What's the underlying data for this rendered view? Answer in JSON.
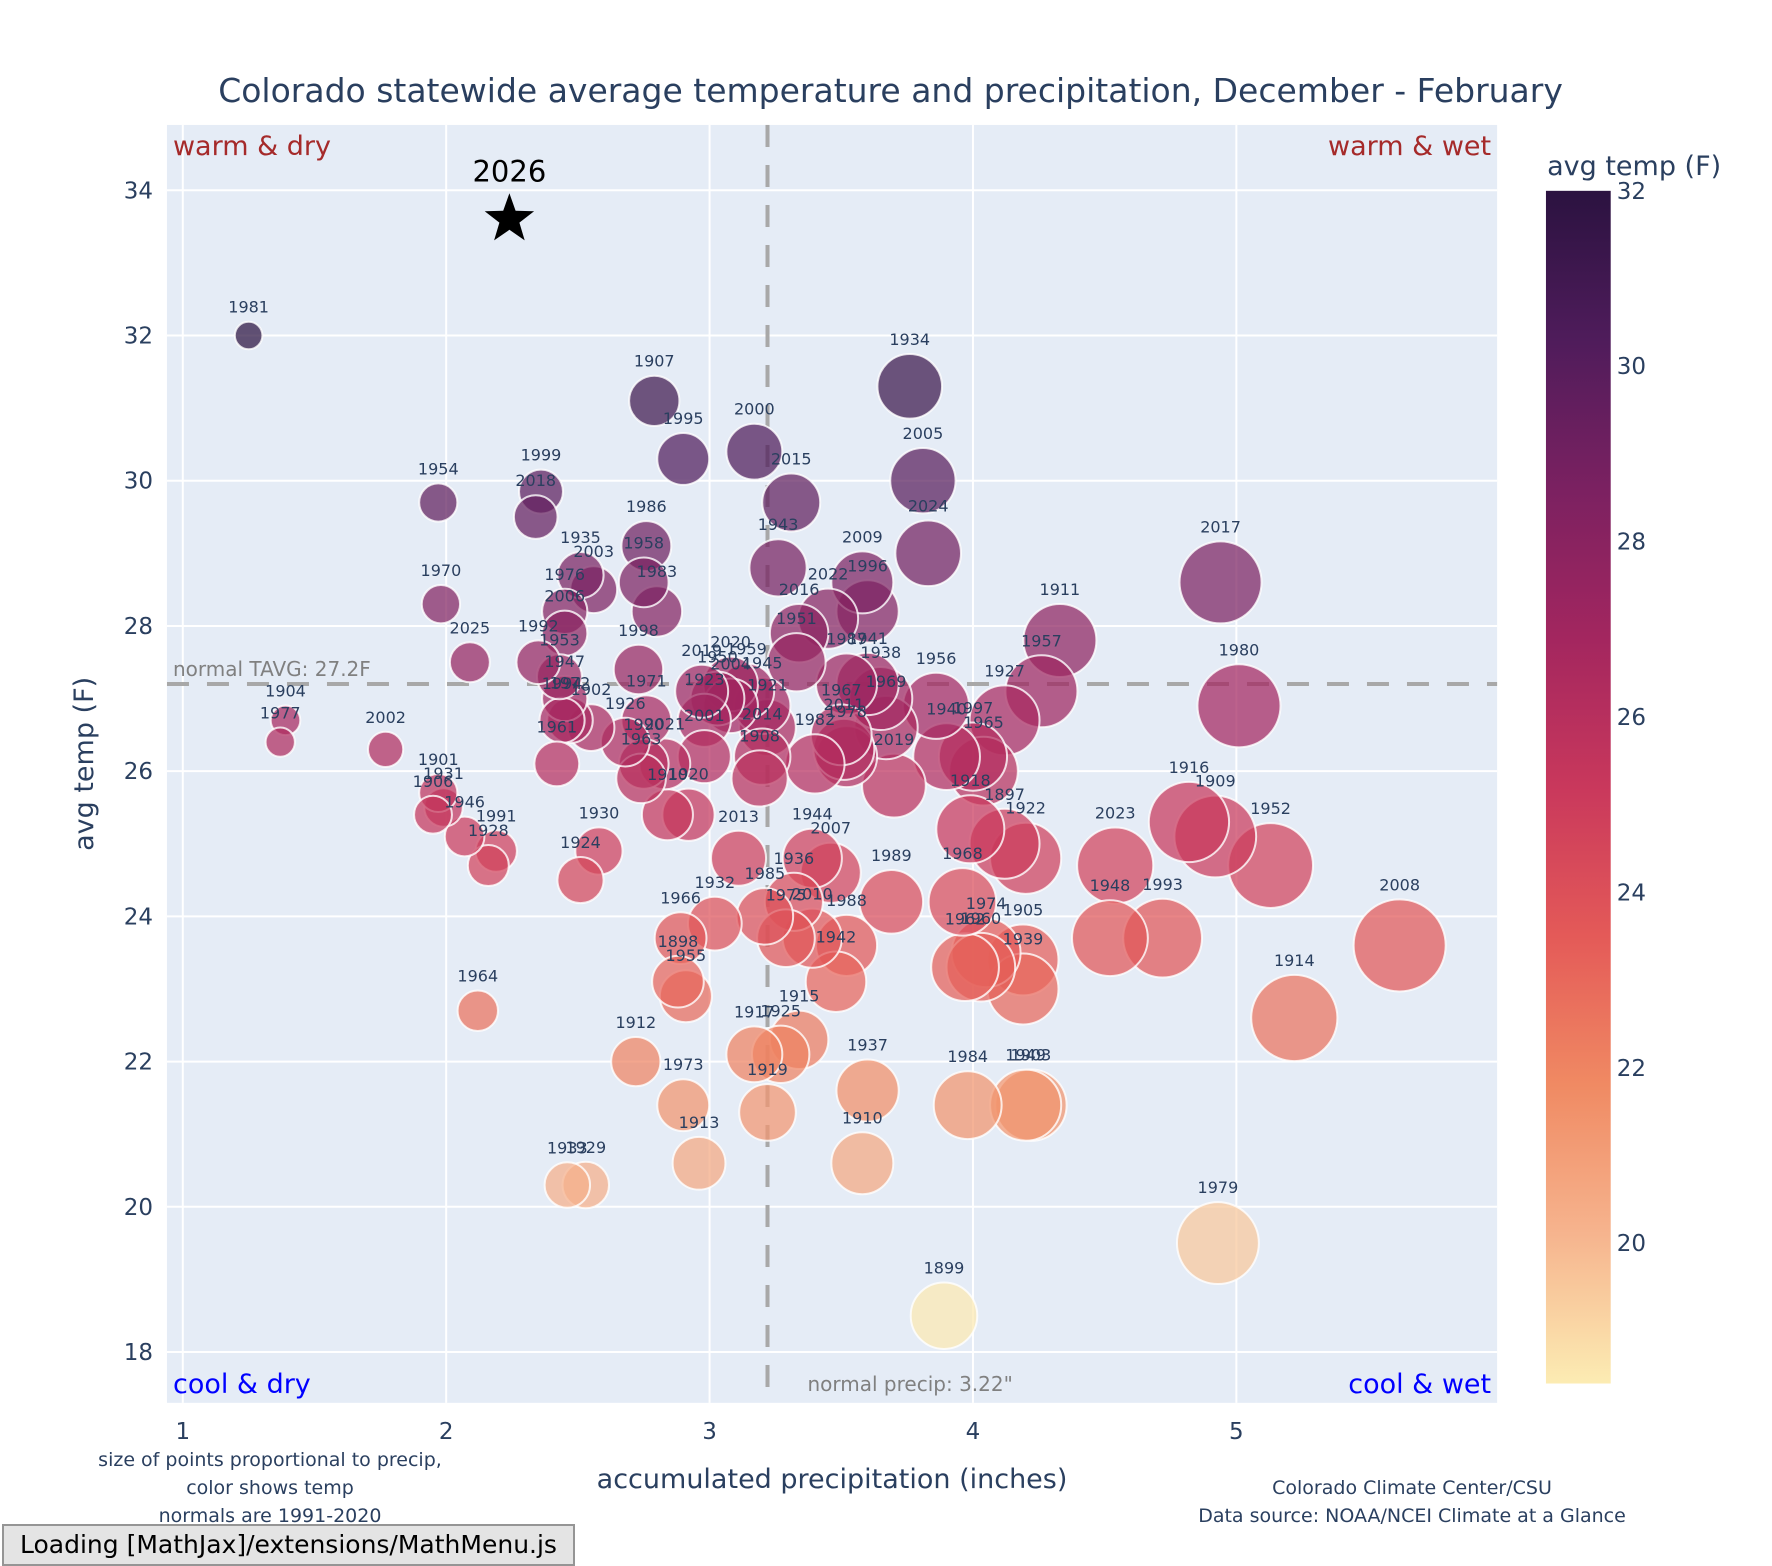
{
  "status_bar": {
    "text": "Loading [MathJax]/extensions/MathMenu.js"
  },
  "chart_data": {
    "type": "scatter",
    "title": "Colorado statewide average temperature and precipitation, December - February",
    "xlabel": "accumulated precipitation (inches)",
    "ylabel": "avg temp (F)",
    "xlim": [
      0.94,
      5.99
    ],
    "ylim": [
      17.3,
      34.9
    ],
    "x_ticks": [
      1,
      2,
      3,
      4,
      5
    ],
    "y_ticks": [
      18,
      20,
      22,
      24,
      26,
      28,
      30,
      32,
      34
    ],
    "grid": true,
    "size_encoding": "precip",
    "color_encoding": "avg temp",
    "colorbar": {
      "title": "avg temp (F)",
      "range": [
        18.4,
        32.0
      ],
      "ticks": [
        20,
        22,
        24,
        26,
        28,
        30,
        32
      ],
      "colorscale": [
        "#fcecb3",
        "#f6b48e",
        "#f08a63",
        "#e45a58",
        "#c9385c",
        "#a3265f",
        "#7b2161",
        "#4f1c5b",
        "#2b1240"
      ]
    },
    "reference_lines": {
      "normal_temp": {
        "value": 27.2,
        "label": "normal TAVG: 27.2F"
      },
      "normal_precip": {
        "value": 3.22,
        "label": "normal precip: 3.22\""
      }
    },
    "quadrant_labels": {
      "top_left": "warm & dry",
      "top_right": "warm & wet",
      "bottom_left": "cool & dry",
      "bottom_right": "cool & wet"
    },
    "highlight": {
      "label": "2026",
      "x": 2.24,
      "y": 33.6,
      "marker": "star"
    },
    "notes_left": [
      "size of points proportional to precip,",
      "color shows temp",
      "normals are 1991-2020"
    ],
    "notes_right": [
      "Colorado Climate Center/CSU",
      "Data source: NOAA/NCEI Climate at a Glance"
    ],
    "points": [
      {
        "year": "1981",
        "x": 1.25,
        "y": 32.0
      },
      {
        "year": "1907",
        "x": 2.79,
        "y": 31.1
      },
      {
        "year": "1934",
        "x": 3.76,
        "y": 31.3
      },
      {
        "year": "1995",
        "x": 2.9,
        "y": 30.3
      },
      {
        "year": "2000",
        "x": 3.17,
        "y": 30.4
      },
      {
        "year": "2005",
        "x": 3.81,
        "y": 30.0
      },
      {
        "year": "1954",
        "x": 1.97,
        "y": 29.7
      },
      {
        "year": "1999",
        "x": 2.36,
        "y": 29.85
      },
      {
        "year": "2018",
        "x": 2.34,
        "y": 29.5
      },
      {
        "year": "2015",
        "x": 3.31,
        "y": 29.7
      },
      {
        "year": "1986",
        "x": 2.76,
        "y": 29.1
      },
      {
        "year": "1943",
        "x": 3.26,
        "y": 28.8
      },
      {
        "year": "2024",
        "x": 3.83,
        "y": 29.0
      },
      {
        "year": "1935",
        "x": 2.51,
        "y": 28.7
      },
      {
        "year": "2003",
        "x": 2.56,
        "y": 28.5
      },
      {
        "year": "1958",
        "x": 2.75,
        "y": 28.6
      },
      {
        "year": "2009",
        "x": 3.58,
        "y": 28.6
      },
      {
        "year": "1996",
        "x": 3.6,
        "y": 28.2
      },
      {
        "year": "2017",
        "x": 4.94,
        "y": 28.6
      },
      {
        "year": "1970",
        "x": 1.98,
        "y": 28.3
      },
      {
        "year": "1976",
        "x": 2.45,
        "y": 28.2
      },
      {
        "year": "2006",
        "x": 2.45,
        "y": 27.9
      },
      {
        "year": "1983",
        "x": 2.8,
        "y": 28.2
      },
      {
        "year": "2022",
        "x": 3.45,
        "y": 28.1
      },
      {
        "year": "2016",
        "x": 3.34,
        "y": 27.9
      },
      {
        "year": "1911",
        "x": 4.33,
        "y": 27.8
      },
      {
        "year": "2025",
        "x": 2.09,
        "y": 27.5
      },
      {
        "year": "1992",
        "x": 2.35,
        "y": 27.5
      },
      {
        "year": "1953",
        "x": 2.43,
        "y": 27.3
      },
      {
        "year": "1947",
        "x": 2.45,
        "y": 27.0
      },
      {
        "year": "1998",
        "x": 2.73,
        "y": 27.4
      },
      {
        "year": "1951",
        "x": 3.33,
        "y": 27.5
      },
      {
        "year": "1980",
        "x": 5.01,
        "y": 26.9
      },
      {
        "year": "1957",
        "x": 4.26,
        "y": 27.1
      },
      {
        "year": "2020",
        "x": 3.08,
        "y": 27.2
      },
      {
        "year": "1959",
        "x": 3.14,
        "y": 27.1
      },
      {
        "year": "2019",
        "x": 2.97,
        "y": 27.1
      },
      {
        "year": "1950",
        "x": 3.03,
        "y": 27.0
      },
      {
        "year": "2004",
        "x": 3.08,
        "y": 26.9
      },
      {
        "year": "1945",
        "x": 3.2,
        "y": 26.9
      },
      {
        "year": "1987",
        "x": 3.52,
        "y": 27.2
      },
      {
        "year": "1941",
        "x": 3.6,
        "y": 27.2
      },
      {
        "year": "1938",
        "x": 3.65,
        "y": 27.0
      },
      {
        "year": "1956",
        "x": 3.86,
        "y": 26.9
      },
      {
        "year": "1927",
        "x": 4.12,
        "y": 26.7
      },
      {
        "year": "1972",
        "x": 2.47,
        "y": 26.7
      },
      {
        "year": "1994",
        "x": 2.44,
        "y": 26.7
      },
      {
        "year": "1902",
        "x": 2.55,
        "y": 26.6
      },
      {
        "year": "1971",
        "x": 2.76,
        "y": 26.7
      },
      {
        "year": "1923",
        "x": 2.98,
        "y": 26.7
      },
      {
        "year": "1921",
        "x": 3.22,
        "y": 26.6
      },
      {
        "year": "1967",
        "x": 3.5,
        "y": 26.5
      },
      {
        "year": "1969",
        "x": 3.67,
        "y": 26.6
      },
      {
        "year": "2011",
        "x": 3.51,
        "y": 26.3
      },
      {
        "year": "1997",
        "x": 4.0,
        "y": 26.2
      },
      {
        "year": "1940",
        "x": 3.9,
        "y": 26.2
      },
      {
        "year": "1904",
        "x": 1.39,
        "y": 26.7
      },
      {
        "year": "1977",
        "x": 1.37,
        "y": 26.4
      },
      {
        "year": "2002",
        "x": 1.77,
        "y": 26.3
      },
      {
        "year": "1926",
        "x": 2.68,
        "y": 26.4
      },
      {
        "year": "2021",
        "x": 2.83,
        "y": 26.1
      },
      {
        "year": "1990",
        "x": 2.75,
        "y": 26.1
      },
      {
        "year": "1963",
        "x": 2.74,
        "y": 25.9
      },
      {
        "year": "1961",
        "x": 2.42,
        "y": 26.1
      },
      {
        "year": "2001",
        "x": 2.98,
        "y": 26.2
      },
      {
        "year": "2014",
        "x": 3.2,
        "y": 26.2
      },
      {
        "year": "1982",
        "x": 3.4,
        "y": 26.1
      },
      {
        "year": "1978",
        "x": 3.52,
        "y": 26.2
      },
      {
        "year": "1965",
        "x": 4.04,
        "y": 26.0
      },
      {
        "year": "2019b",
        "x": 3.7,
        "y": 25.8
      },
      {
        "year": "1908",
        "x": 3.19,
        "y": 25.9
      },
      {
        "year": "1901",
        "x": 1.97,
        "y": 25.7
      },
      {
        "year": "1931",
        "x": 1.99,
        "y": 25.5
      },
      {
        "year": "1906",
        "x": 1.95,
        "y": 25.4
      },
      {
        "year": "1946",
        "x": 2.07,
        "y": 25.1
      },
      {
        "year": "1991",
        "x": 2.19,
        "y": 24.9
      },
      {
        "year": "1928",
        "x": 2.16,
        "y": 24.7
      },
      {
        "year": "1930",
        "x": 2.58,
        "y": 24.9
      },
      {
        "year": "1924",
        "x": 2.51,
        "y": 24.5
      },
      {
        "year": "1910b",
        "x": 2.84,
        "y": 25.4
      },
      {
        "year": "1920",
        "x": 2.92,
        "y": 25.4
      },
      {
        "year": "2013",
        "x": 3.11,
        "y": 24.8
      },
      {
        "year": "1944",
        "x": 3.39,
        "y": 24.8
      },
      {
        "year": "2007",
        "x": 3.46,
        "y": 24.6
      },
      {
        "year": "1918",
        "x": 3.99,
        "y": 25.2
      },
      {
        "year": "1897",
        "x": 4.12,
        "y": 25.0
      },
      {
        "year": "1922",
        "x": 4.2,
        "y": 24.8
      },
      {
        "year": "1916",
        "x": 4.82,
        "y": 25.3
      },
      {
        "year": "1909",
        "x": 4.92,
        "y": 25.1
      },
      {
        "year": "1952",
        "x": 5.13,
        "y": 24.7
      },
      {
        "year": "2023",
        "x": 4.54,
        "y": 24.7
      },
      {
        "year": "1989",
        "x": 3.69,
        "y": 24.2
      },
      {
        "year": "1968",
        "x": 3.96,
        "y": 24.2
      },
      {
        "year": "1936",
        "x": 3.32,
        "y": 24.2
      },
      {
        "year": "1985",
        "x": 3.21,
        "y": 24.0
      },
      {
        "year": "1975",
        "x": 3.29,
        "y": 23.7
      },
      {
        "year": "2010",
        "x": 3.39,
        "y": 23.7
      },
      {
        "year": "1988",
        "x": 3.52,
        "y": 23.6
      },
      {
        "year": "1942",
        "x": 3.48,
        "y": 23.1
      },
      {
        "year": "1932",
        "x": 3.02,
        "y": 23.9
      },
      {
        "year": "1966",
        "x": 2.89,
        "y": 23.7
      },
      {
        "year": "1898",
        "x": 2.88,
        "y": 23.1
      },
      {
        "year": "1955",
        "x": 2.91,
        "y": 22.9
      },
      {
        "year": "1974",
        "x": 4.05,
        "y": 23.5
      },
      {
        "year": "1905",
        "x": 4.19,
        "y": 23.4
      },
      {
        "year": "1962",
        "x": 3.97,
        "y": 23.3
      },
      {
        "year": "1960",
        "x": 4.03,
        "y": 23.3
      },
      {
        "year": "1939",
        "x": 4.19,
        "y": 23.0
      },
      {
        "year": "1948",
        "x": 4.52,
        "y": 23.7
      },
      {
        "year": "1993",
        "x": 4.72,
        "y": 23.7
      },
      {
        "year": "2008",
        "x": 5.62,
        "y": 23.6
      },
      {
        "year": "1964",
        "x": 2.12,
        "y": 22.7
      },
      {
        "year": "1914",
        "x": 5.22,
        "y": 22.6
      },
      {
        "year": "1915",
        "x": 3.34,
        "y": 22.3
      },
      {
        "year": "1917",
        "x": 3.17,
        "y": 22.1
      },
      {
        "year": "1925",
        "x": 3.27,
        "y": 22.1
      },
      {
        "year": "1912",
        "x": 2.72,
        "y": 22.0
      },
      {
        "year": "1937",
        "x": 3.6,
        "y": 21.6
      },
      {
        "year": "1973",
        "x": 2.9,
        "y": 21.4
      },
      {
        "year": "1919",
        "x": 3.22,
        "y": 21.3
      },
      {
        "year": "1984",
        "x": 3.98,
        "y": 21.4
      },
      {
        "year": "1949",
        "x": 4.2,
        "y": 21.4
      },
      {
        "year": "1903",
        "x": 4.22,
        "y": 21.4
      },
      {
        "year": "1913",
        "x": 2.96,
        "y": 20.6
      },
      {
        "year": "1910",
        "x": 3.58,
        "y": 20.6
      },
      {
        "year": "1933",
        "x": 2.46,
        "y": 20.3
      },
      {
        "year": "1929",
        "x": 2.53,
        "y": 20.3
      },
      {
        "year": "1979",
        "x": 4.93,
        "y": 19.5
      },
      {
        "year": "1899",
        "x": 3.89,
        "y": 18.5
      }
    ]
  }
}
